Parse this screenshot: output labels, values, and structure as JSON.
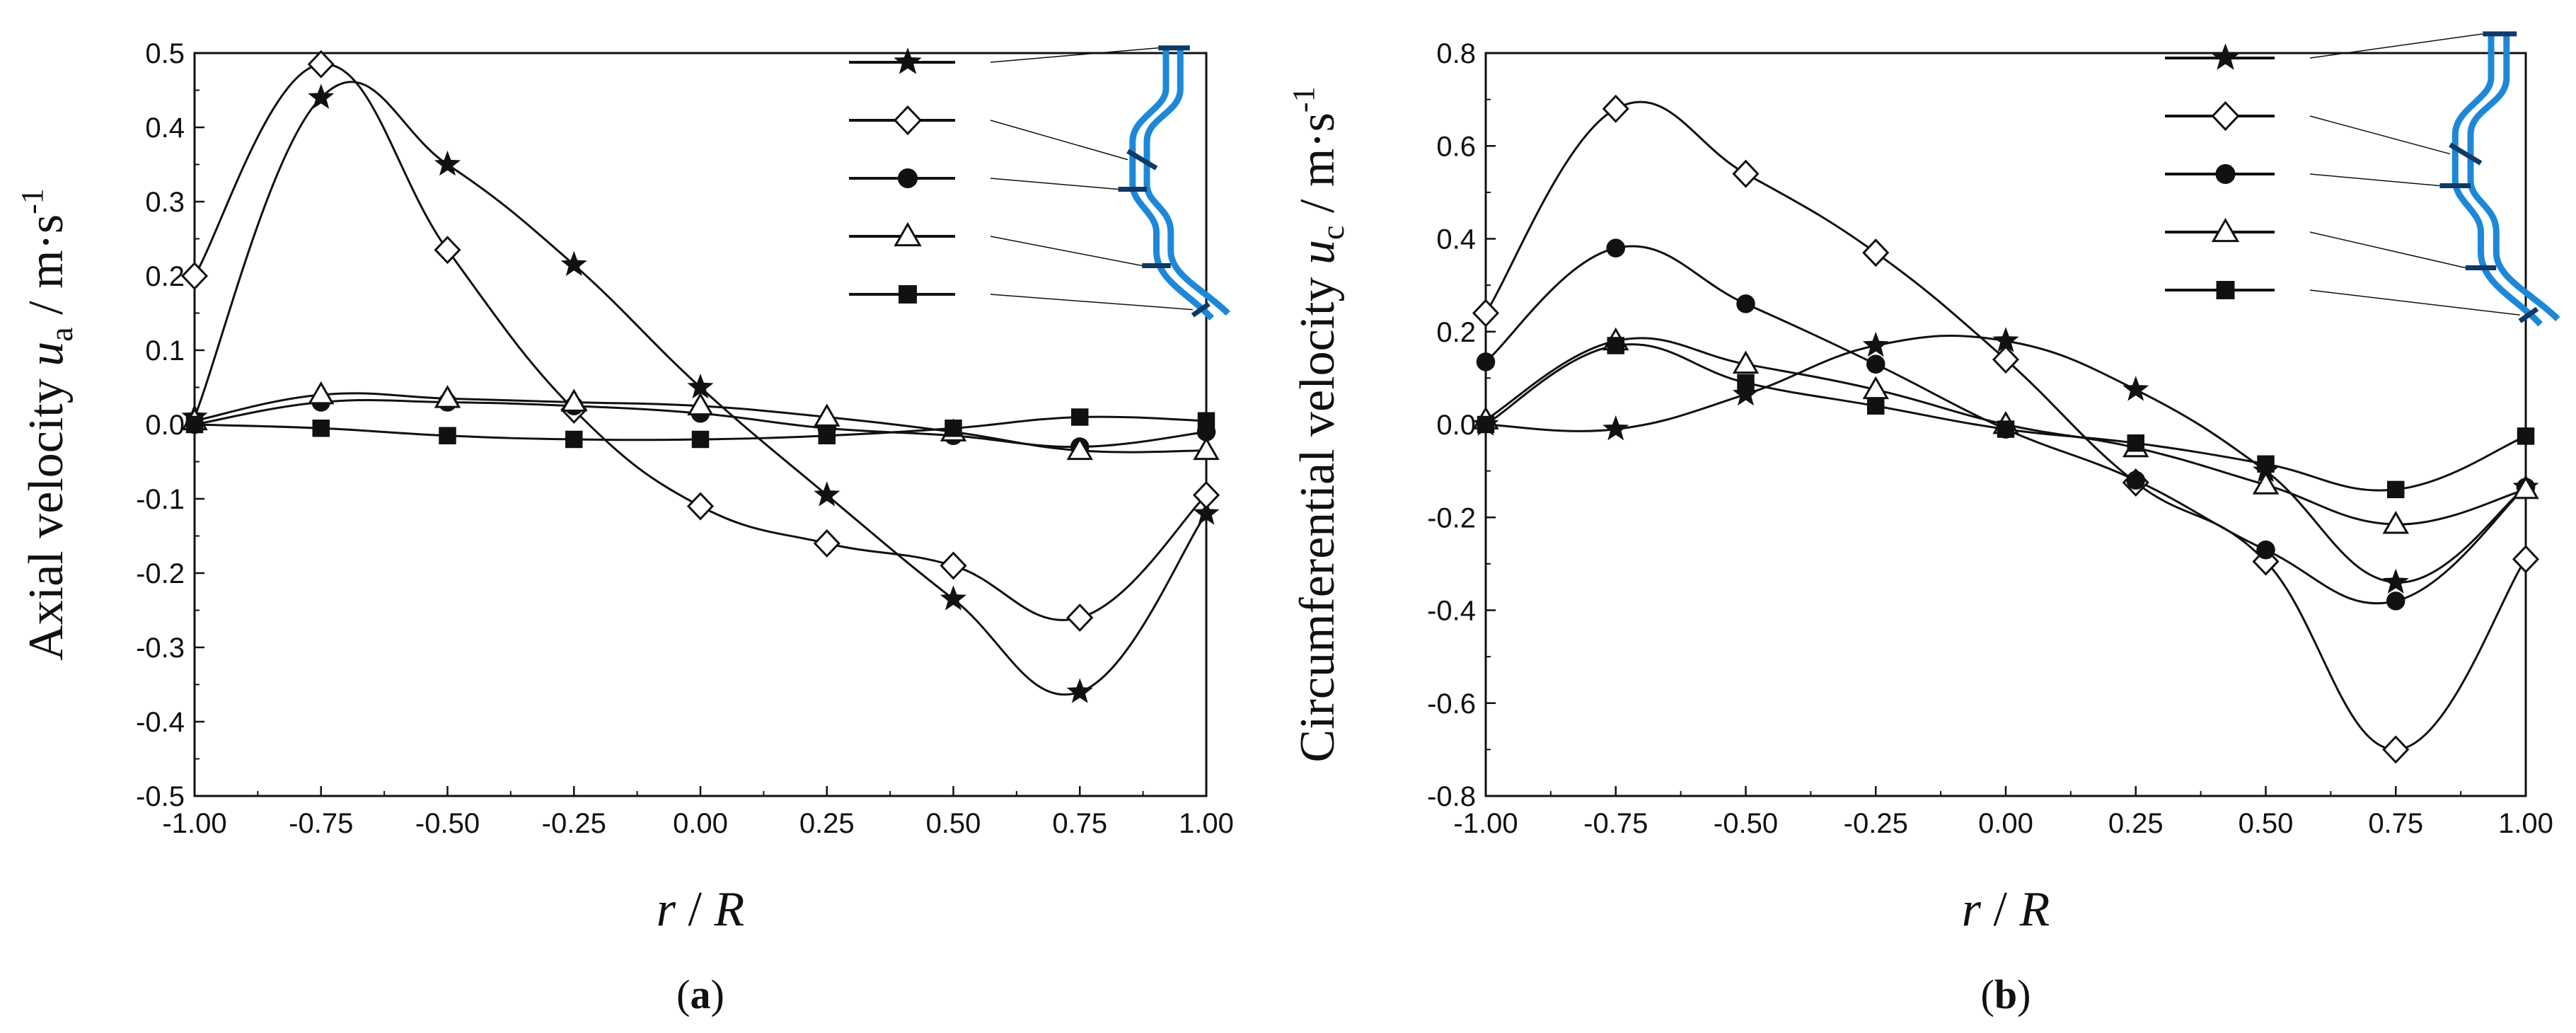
{
  "figure": {
    "panel_a_label": "a",
    "panel_b_label": "b"
  },
  "colors": {
    "line": "#111111",
    "pipe": "#1e88d8",
    "pipe_dark": "#0d3a66"
  },
  "legend_markers": [
    "star",
    "diamond",
    "circle",
    "triangle",
    "square"
  ],
  "chart_data": [
    {
      "type": "line",
      "panel": "a",
      "ylabel_main": "Axial velocity",
      "ylabel_symbol": "u",
      "ylabel_subscript": "a",
      "ylabel_unit": " / m·s",
      "ylabel_unit_exp": "-1",
      "xlabel_r": "r",
      "xlabel_sep": " / ",
      "xlabel_R": "R",
      "xlim": [
        -1,
        1
      ],
      "ylim": [
        -0.5,
        0.5
      ],
      "xticks": [
        "-1.00",
        "-0.75",
        "-0.50",
        "-0.25",
        "0.00",
        "0.25",
        "0.50",
        "0.75",
        "1.00"
      ],
      "yticks": [
        "-0.5",
        "-0.4",
        "-0.3",
        "-0.2",
        "-0.1",
        "0.0",
        "0.1",
        "0.2",
        "0.3",
        "0.4",
        "0.5"
      ],
      "x": [
        -1.0,
        -0.75,
        -0.5,
        -0.25,
        0.0,
        0.25,
        0.5,
        0.75,
        1.0
      ],
      "series": [
        {
          "marker": "star",
          "values": [
            0.01,
            0.44,
            0.35,
            0.215,
            0.05,
            -0.095,
            -0.235,
            -0.36,
            -0.12
          ]
        },
        {
          "marker": "diamond",
          "values": [
            0.2,
            0.485,
            0.235,
            0.02,
            -0.11,
            -0.16,
            -0.19,
            -0.26,
            -0.095
          ]
        },
        {
          "marker": "circle",
          "values": [
            0.0,
            0.03,
            0.03,
            0.025,
            0.015,
            -0.005,
            -0.015,
            -0.03,
            -0.01
          ]
        },
        {
          "marker": "triangle",
          "values": [
            0.005,
            0.04,
            0.035,
            0.03,
            0.025,
            0.01,
            -0.01,
            -0.035,
            -0.035
          ]
        },
        {
          "marker": "square",
          "values": [
            0.0,
            -0.005,
            -0.015,
            -0.02,
            -0.02,
            -0.015,
            -0.005,
            0.01,
            0.005
          ]
        }
      ]
    },
    {
      "type": "line",
      "panel": "b",
      "ylabel_main": "Circumferential velocity ",
      "ylabel_symbol": "u",
      "ylabel_subscript": "c",
      "ylabel_unit": " / m·s",
      "ylabel_unit_exp": "-1",
      "xlabel_r": "r",
      "xlabel_sep": " / ",
      "xlabel_R": "R",
      "xlim": [
        -1,
        1
      ],
      "ylim": [
        -0.8,
        0.8
      ],
      "xticks": [
        "-1.00",
        "-0.75",
        "-0.50",
        "-0.25",
        "0.00",
        "0.25",
        "0.50",
        "0.75",
        "1.00"
      ],
      "yticks": [
        "-0.8",
        "-0.6",
        "-0.4",
        "-0.2",
        "0.0",
        "0.2",
        "0.4",
        "0.6",
        "0.8"
      ],
      "x": [
        -1.0,
        -0.75,
        -0.5,
        -0.25,
        0.0,
        0.25,
        0.5,
        0.75,
        1.0
      ],
      "series": [
        {
          "marker": "star",
          "values": [
            0.0,
            -0.01,
            0.065,
            0.17,
            0.18,
            0.075,
            -0.1,
            -0.34,
            -0.135
          ]
        },
        {
          "marker": "diamond",
          "values": [
            0.24,
            0.68,
            0.54,
            0.37,
            0.14,
            -0.125,
            -0.295,
            -0.7,
            -0.29
          ]
        },
        {
          "marker": "circle",
          "values": [
            0.135,
            0.38,
            0.26,
            0.13,
            -0.01,
            -0.12,
            -0.27,
            -0.38,
            -0.135
          ]
        },
        {
          "marker": "triangle",
          "values": [
            0.01,
            0.18,
            0.13,
            0.075,
            0.0,
            -0.05,
            -0.13,
            -0.215,
            -0.14
          ]
        },
        {
          "marker": "square",
          "values": [
            0.0,
            0.17,
            0.09,
            0.04,
            -0.01,
            -0.04,
            -0.085,
            -0.14,
            -0.025
          ]
        }
      ]
    }
  ]
}
